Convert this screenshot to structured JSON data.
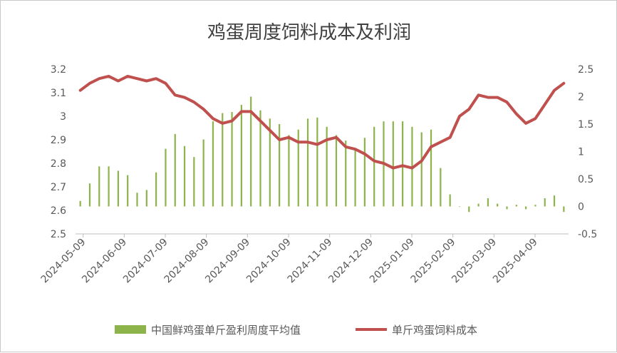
{
  "chart_data": {
    "type": "bar+line",
    "title": "鸡蛋周度饲料成本及利润",
    "x_tick_labels": [
      "2024-05-09",
      "2024-06-09",
      "2024-07-09",
      "2024-08-09",
      "2024-09-09",
      "2024-10-09",
      "2024-11-09",
      "2024-12-09",
      "2025-01-09",
      "2025-02-09",
      "2025-03-09",
      "2025-04-09"
    ],
    "left_axis": {
      "ylim": [
        2.5,
        3.2
      ],
      "ticks": [
        "2.5",
        "2.6",
        "2.7",
        "2.8",
        "2.9",
        "3",
        "3.1",
        "3.2"
      ]
    },
    "right_axis": {
      "ylim": [
        -0.5,
        2.5
      ],
      "ticks": [
        "-0.5",
        "0",
        "0.5",
        "1",
        "1.5",
        "2",
        "2.5"
      ]
    },
    "series": [
      {
        "name": "中国鲜鸡蛋单斤盈利周度平均值",
        "type": "bar",
        "axis": "right",
        "color": "#8cb44b",
        "values": [
          0.1,
          0.42,
          0.73,
          0.73,
          0.65,
          0.57,
          0.25,
          0.3,
          0.62,
          1.05,
          1.32,
          1.1,
          0.9,
          1.22,
          1.55,
          1.7,
          1.72,
          1.85,
          2.0,
          1.75,
          1.6,
          1.5,
          1.3,
          1.4,
          1.6,
          1.62,
          1.45,
          1.3,
          1.2,
          1.05,
          1.25,
          1.45,
          1.55,
          1.55,
          1.55,
          1.45,
          1.35,
          1.4,
          0.7,
          0.22,
          0,
          -0.1,
          0.05,
          0.15,
          0.05,
          -0.05,
          0.03,
          -0.05,
          0.03,
          0.15,
          0.2,
          -0.1
        ]
      },
      {
        "name": "单斤鸡蛋饲料成本",
        "type": "line",
        "axis": "left",
        "color": "#c0504d",
        "values": [
          3.11,
          3.14,
          3.16,
          3.17,
          3.15,
          3.17,
          3.16,
          3.15,
          3.16,
          3.14,
          3.09,
          3.08,
          3.06,
          3.03,
          2.99,
          2.97,
          2.98,
          3.02,
          3.02,
          2.98,
          2.94,
          2.9,
          2.91,
          2.89,
          2.89,
          2.88,
          2.9,
          2.91,
          2.87,
          2.86,
          2.84,
          2.81,
          2.8,
          2.78,
          2.79,
          2.78,
          2.81,
          2.87,
          2.89,
          2.91,
          3.0,
          3.03,
          3.09,
          3.08,
          3.08,
          3.06,
          3.01,
          2.97,
          2.99,
          3.05,
          3.11,
          3.14
        ]
      }
    ]
  }
}
